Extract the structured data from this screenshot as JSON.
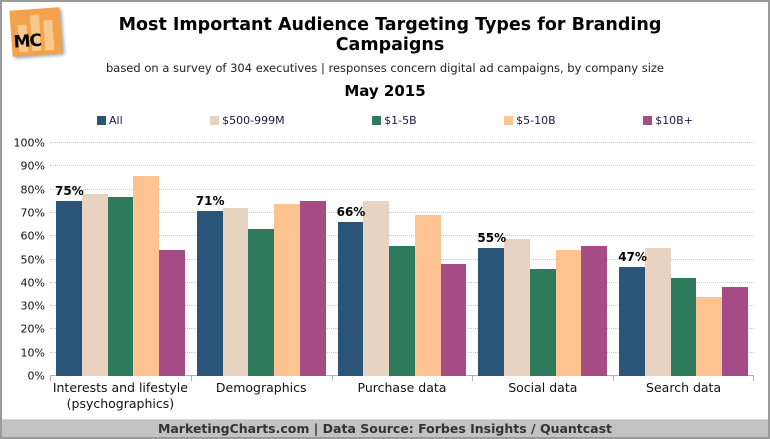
{
  "header": {
    "logo_text": "MC",
    "title": "Most Important Audience Targeting Types for Branding Campaigns",
    "subtitle": "based on a survey of 304 executives | responses concern digital ad campaigns, by company size",
    "date": "May 2015"
  },
  "chart_data": {
    "type": "bar",
    "title": "Most Important Audience Targeting Types for Branding Campaigns",
    "categories": [
      "Interests and lifestyle\n(psychographics)",
      "Demographics",
      "Purchase data",
      "Social data",
      "Search data"
    ],
    "series": [
      {
        "name": "All",
        "color": "#2a5578",
        "values": [
          75,
          71,
          66,
          55,
          47
        ]
      },
      {
        "name": "$500-999M",
        "color": "#e8d2c0",
        "values": [
          78,
          72,
          75,
          59,
          55
        ]
      },
      {
        "name": "$1-5B",
        "color": "#2d7b5c",
        "values": [
          77,
          63,
          56,
          46,
          42
        ]
      },
      {
        "name": "$5-10B",
        "color": "#ffc392",
        "values": [
          86,
          74,
          69,
          54,
          34
        ]
      },
      {
        "name": "$10B+",
        "color": "#a54b85",
        "values": [
          54,
          75,
          48,
          56,
          38
        ]
      }
    ],
    "value_labels": [
      "75%",
      "71%",
      "66%",
      "55%",
      "47%"
    ],
    "value_labels_series": "All",
    "y_tick_labels": [
      "0%",
      "10%",
      "20%",
      "30%",
      "40%",
      "50%",
      "60%",
      "70%",
      "80%",
      "90%",
      "100%"
    ],
    "ylim": [
      0,
      100
    ],
    "grid": "dotted horizontal",
    "legend_position": "top"
  },
  "footer": {
    "credit": "MarketingCharts.com | Data Source: Forbes Insights / Quantcast"
  }
}
